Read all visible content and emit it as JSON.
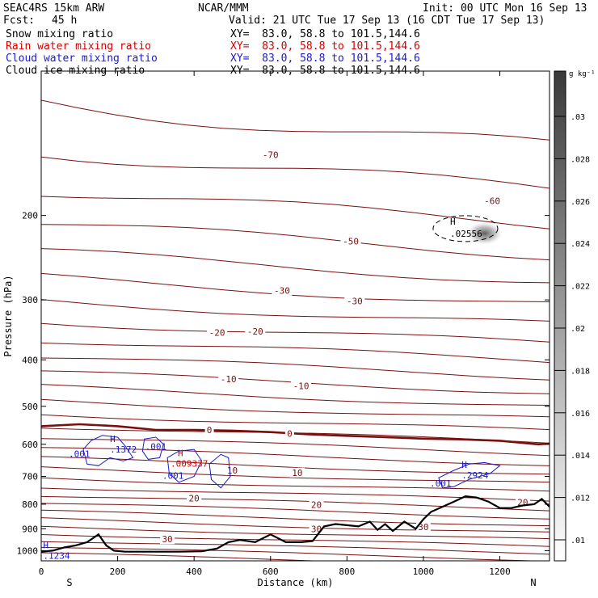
{
  "header": {
    "model": "SEAC4RS 15km ARW",
    "org": "NCAR/MMM",
    "init": "Init: 00 UTC Mon 16 Sep 13",
    "fcst_label": "Fcst:",
    "fcst_value": "45 h",
    "valid": "Valid: 21 UTC Tue 17 Sep 13 (16 CDT Tue 17 Sep 13)",
    "fields": [
      {
        "name": "Snow mixing ratio",
        "color": "#000000",
        "xy": "XY=  83.0, 58.8 to 101.5,144.6"
      },
      {
        "name": "Rain water mixing ratio",
        "color": "#d40000",
        "xy": "XY=  83.0, 58.8 to 101.5,144.6"
      },
      {
        "name": "Cloud water mixing ratio",
        "color": "#1a1ad0",
        "xy": "XY=  83.0, 58.8 to 101.5,144.6"
      },
      {
        "name": "Cloud ice mixing ratio",
        "color": "#000000",
        "xy": "XY=  83.0, 58.8 to 101.5,144.6"
      }
    ]
  },
  "chart_data": {
    "type": "contour",
    "xlabel": "Distance (km)",
    "ylabel": "Pressure (hPa)",
    "xlim": [
      0,
      1330
    ],
    "ylim": [
      1050,
      100
    ],
    "y_scale": "log",
    "x_ticks": [
      0,
      200,
      400,
      600,
      800,
      1000,
      1200
    ],
    "y_ticks": [
      200,
      300,
      400,
      500,
      600,
      700,
      800,
      900,
      1000
    ],
    "x_end_labels": {
      "left": "S",
      "right": "N"
    },
    "colorbar": {
      "unit": "g kg⁻¹",
      "ticks": [
        ".01",
        ".012",
        ".014",
        ".016",
        ".018",
        ".02",
        ".022",
        ".024",
        ".026",
        ".028",
        ".03"
      ]
    },
    "colors": {
      "temperature": "#7a0f0f",
      "cloud_water": "#1a1ad0",
      "rain": "#d40000",
      "terrain": "#000000",
      "ice": "#000000"
    },
    "temperature_isotherms": {
      "units": "°C",
      "labels": [
        {
          "text": "-70",
          "x": 600,
          "p": 150
        },
        {
          "text": "-60",
          "x": 1180,
          "p": 187
        },
        {
          "text": "-50",
          "x": 810,
          "p": 227
        },
        {
          "text": "-30",
          "x": 630,
          "p": 288
        },
        {
          "text": "-30",
          "x": 820,
          "p": 303
        },
        {
          "text": "-20",
          "x": 560,
          "p": 350
        },
        {
          "text": "-20",
          "x": 460,
          "p": 352
        },
        {
          "text": "-10",
          "x": 490,
          "p": 440
        },
        {
          "text": "-10",
          "x": 680,
          "p": 455
        },
        {
          "text": "0",
          "x": 440,
          "p": 562
        },
        {
          "text": "0",
          "x": 650,
          "p": 572
        },
        {
          "text": "10",
          "x": 500,
          "p": 682
        },
        {
          "text": "10",
          "x": 670,
          "p": 690
        },
        {
          "text": "20",
          "x": 400,
          "p": 780
        },
        {
          "text": "20",
          "x": 720,
          "p": 805
        },
        {
          "text": "20",
          "x": 1260,
          "p": 795
        },
        {
          "text": "30",
          "x": 720,
          "p": 905
        },
        {
          "text": "30",
          "x": 1000,
          "p": 895
        },
        {
          "text": "30",
          "x": 330,
          "p": 950
        }
      ],
      "freezing_level": {
        "x": [
          0,
          100,
          200,
          300,
          400,
          500,
          600,
          700,
          800,
          900,
          1000,
          1100,
          1200,
          1300,
          1330
        ],
        "p": [
          550,
          545,
          550,
          560,
          560,
          562,
          566,
          572,
          576,
          580,
          584,
          586,
          590,
          600,
          598
        ]
      }
    },
    "terrain": {
      "x": [
        0,
        30,
        60,
        90,
        120,
        150,
        170,
        190,
        220,
        260,
        300,
        360,
        420,
        460,
        490,
        520,
        560,
        600,
        640,
        680,
        710,
        740,
        770,
        800,
        830,
        860,
        880,
        900,
        920,
        950,
        980,
        1000,
        1020,
        1050,
        1080,
        1110,
        1140,
        1170,
        1200,
        1230,
        1260,
        1290,
        1310,
        1330
      ],
      "p": [
        1005,
        1000,
        985,
        975,
        960,
        925,
        975,
        1000,
        1005,
        1005,
        1005,
        1005,
        1003,
        990,
        960,
        950,
        960,
        925,
        960,
        960,
        955,
        890,
        880,
        885,
        890,
        870,
        905,
        880,
        910,
        870,
        900,
        860,
        830,
        810,
        790,
        770,
        775,
        790,
        815,
        815,
        805,
        800,
        780,
        810
      ]
    },
    "cloud_water": {
      "units": "g kg⁻¹",
      "contour_labels": [
        {
          "text": ".001",
          "x": 100,
          "p": 638
        },
        {
          "text": ".001",
          "x": 300,
          "p": 616
        },
        {
          "text": ".001",
          "x": 345,
          "p": 708
        },
        {
          "text": ".001",
          "x": 1045,
          "p": 735
        }
      ],
      "maxima": [
        {
          "symbol": "H",
          "value": ".1372",
          "x": 180,
          "p": 612
        },
        {
          "symbol": "H",
          "value": ".2924",
          "x": 1100,
          "p": 693
        },
        {
          "symbol": "H",
          "value": ".1234",
          "x": 5,
          "p": 1020
        }
      ]
    },
    "rain_water": {
      "maxima": [
        {
          "symbol": "H",
          "value": ".009337",
          "x": 370,
          "p": 655
        }
      ]
    },
    "ice": {
      "maxima": [
        {
          "symbol": "H",
          "value": ".02556",
          "x": 1110,
          "p": 213
        }
      ]
    }
  }
}
